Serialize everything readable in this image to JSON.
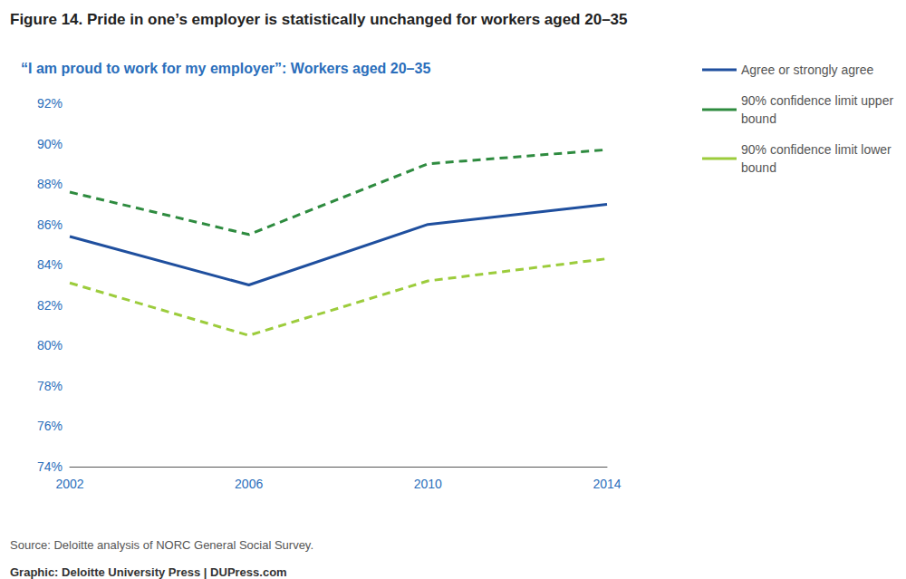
{
  "chart_data": {
    "type": "line",
    "title": "Figure 14. Pride in one’s employer is statistically unchanged for workers aged 20–35",
    "subtitle": "“I am proud to work for my employer”: Workers aged 20–35",
    "source": "Source: Deloitte analysis of NORC General Social Survey.",
    "credit": "Graphic: Deloitte University Press | DUPress.com",
    "categories": [
      "2002",
      "2006",
      "2010",
      "2014"
    ],
    "series": [
      {
        "name": "Agree or strongly agree",
        "color": "#1f4f9e",
        "line_style": "solid",
        "values": [
          85.4,
          83.0,
          86.0,
          87.0
        ]
      },
      {
        "name": "90% confidence limit upper bound",
        "color": "#2e8b3f",
        "line_style": "dashed",
        "values": [
          87.6,
          85.5,
          89.0,
          89.7
        ]
      },
      {
        "name": "90% confidence limit lower bound",
        "color": "#9ccc3c",
        "line_style": "dashed",
        "values": [
          83.1,
          80.5,
          83.2,
          84.3
        ]
      }
    ],
    "ylim": [
      74,
      92
    ],
    "yticks": [
      {
        "value": 74,
        "label": "74%"
      },
      {
        "value": 76,
        "label": "76%"
      },
      {
        "value": 78,
        "label": "78%"
      },
      {
        "value": 80,
        "label": "80%"
      },
      {
        "value": 82,
        "label": "82%"
      },
      {
        "value": 84,
        "label": "84%"
      },
      {
        "value": 86,
        "label": "86%"
      },
      {
        "value": 88,
        "label": "88%"
      },
      {
        "value": 90,
        "label": "90%"
      },
      {
        "value": 92,
        "label": "92%"
      }
    ],
    "grid": false,
    "legend": "right"
  }
}
